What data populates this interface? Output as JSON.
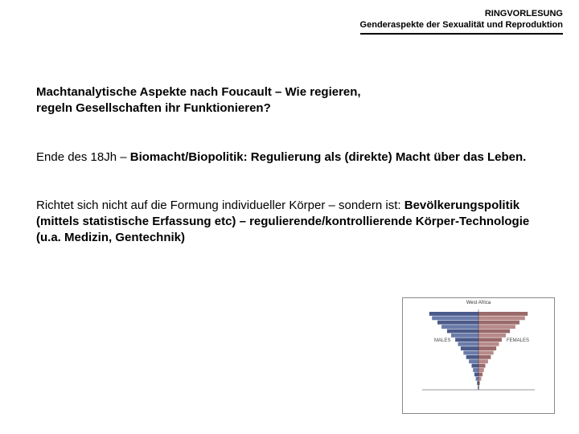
{
  "header": {
    "line1": "RINGVORLESUNG",
    "line2": "Genderaspekte der Sexualität und Reproduktion"
  },
  "title": {
    "l1": "Machtanalytische Aspekte nach Foucault – Wie regieren,",
    "l2": "regeln Gesellschaften ihr Funktionieren?"
  },
  "p1": {
    "a": "Ende des 18Jh – ",
    "b": "Biomacht/Biopolitik: Regulierung",
    "c": " als (direkte) Macht über das Leben."
  },
  "p2": {
    "a": "Richtet sich nicht auf die Formung individueller Körper – sondern ist: ",
    "b": "Bevölkerungspolitik (mittels statistische Erfassung etc) – regulierende/kontrollierende Körper-Technologie (u.a. Medizin, Gentechnik)"
  },
  "pyramid": {
    "title": "West Africa",
    "left_label": "MALES",
    "right_label": "FEMALES",
    "left_color": "#4a5a8a",
    "left_color_alt": "#6a7aaa",
    "right_color": "#9a6a6a",
    "right_color_alt": "#b88a8a",
    "axis_color": "#333",
    "bg": "#ffffff",
    "bars": [
      36,
      34,
      30,
      27,
      23,
      20,
      17,
      15,
      13,
      11,
      9,
      7,
      5,
      4,
      3,
      2,
      1,
      0.5
    ]
  }
}
